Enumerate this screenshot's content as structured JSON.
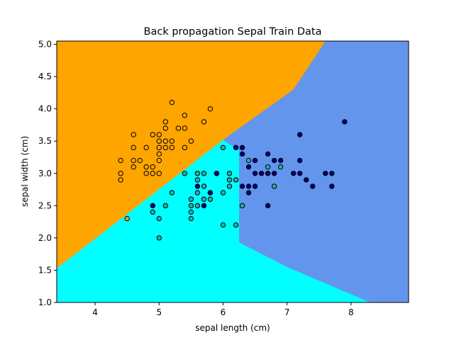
{
  "chart_data": {
    "type": "scatter",
    "title": "Back propagation Sepal Train Data",
    "xlabel": "sepal length (cm)",
    "ylabel": "sepal width (cm)",
    "xlim": [
      3.4,
      8.9
    ],
    "ylim": [
      1.0,
      5.05
    ],
    "xticks": [
      4,
      5,
      6,
      7,
      8
    ],
    "yticks": [
      1.0,
      1.5,
      2.0,
      2.5,
      3.0,
      3.5,
      4.0,
      4.5,
      5.0
    ],
    "grid": false,
    "region_colors": {
      "class0": "#ffa500",
      "class1": "#00ffff",
      "class2": "#6495ed"
    },
    "decision_regions": {
      "class0_boundary": [
        [
          3.4,
          1.53
        ],
        [
          6.0,
          3.52
        ],
        [
          7.1,
          4.3
        ],
        [
          7.6,
          5.05
        ]
      ],
      "class2_boundary": [
        [
          6.0,
          3.52
        ],
        [
          6.25,
          3.35
        ],
        [
          6.25,
          1.93
        ],
        [
          7.0,
          1.55
        ],
        [
          8.3,
          1.0
        ]
      ]
    },
    "series": [
      {
        "color": "#ffa500",
        "points": [
          [
            4.4,
            3.2
          ],
          [
            4.4,
            3.0
          ],
          [
            4.4,
            2.9
          ],
          [
            4.5,
            2.3
          ],
          [
            4.6,
            3.6
          ],
          [
            4.6,
            3.4
          ],
          [
            4.6,
            3.2
          ],
          [
            4.6,
            3.1
          ],
          [
            4.7,
            3.2
          ],
          [
            4.8,
            3.4
          ],
          [
            4.8,
            3.1
          ],
          [
            4.8,
            3.0
          ],
          [
            4.9,
            3.6
          ],
          [
            4.9,
            3.1
          ],
          [
            4.9,
            3.0
          ],
          [
            5.0,
            3.6
          ],
          [
            5.0,
            3.5
          ],
          [
            5.0,
            3.4
          ],
          [
            5.0,
            3.3
          ],
          [
            5.0,
            3.2
          ],
          [
            5.0,
            3.0
          ],
          [
            5.1,
            3.8
          ],
          [
            5.1,
            3.7
          ],
          [
            5.1,
            3.5
          ],
          [
            5.1,
            3.4
          ],
          [
            5.2,
            4.1
          ],
          [
            5.2,
            3.5
          ],
          [
            5.2,
            3.4
          ],
          [
            5.3,
            3.7
          ],
          [
            5.4,
            3.9
          ],
          [
            5.4,
            3.7
          ],
          [
            5.4,
            3.4
          ],
          [
            5.5,
            3.5
          ],
          [
            5.7,
            3.8
          ],
          [
            5.8,
            4.0
          ]
        ]
      },
      {
        "color": "#20b2aa",
        "points": [
          [
            4.9,
            2.4
          ],
          [
            5.0,
            2.3
          ],
          [
            5.0,
            2.0
          ],
          [
            5.1,
            2.5
          ],
          [
            5.2,
            2.7
          ],
          [
            5.4,
            3.0
          ],
          [
            5.5,
            2.6
          ],
          [
            5.5,
            2.5
          ],
          [
            5.5,
            2.4
          ],
          [
            5.5,
            2.3
          ],
          [
            5.6,
            3.0
          ],
          [
            5.6,
            2.9
          ],
          [
            5.6,
            2.7
          ],
          [
            5.6,
            2.5
          ],
          [
            5.7,
            3.0
          ],
          [
            5.7,
            2.8
          ],
          [
            5.7,
            2.6
          ],
          [
            5.8,
            2.7
          ],
          [
            5.8,
            2.6
          ],
          [
            6.0,
            3.4
          ],
          [
            6.0,
            2.7
          ],
          [
            6.0,
            2.2
          ],
          [
            6.1,
            3.0
          ],
          [
            6.1,
            2.9
          ],
          [
            6.1,
            2.8
          ],
          [
            6.2,
            2.9
          ],
          [
            6.3,
            2.5
          ],
          [
            6.4,
            3.2
          ],
          [
            6.6,
            3.0
          ],
          [
            6.7,
            3.1
          ],
          [
            6.7,
            3.0
          ],
          [
            6.8,
            2.8
          ],
          [
            6.9,
            3.1
          ],
          [
            6.2,
            2.2
          ],
          [
            5.9,
            3.0
          ]
        ]
      },
      {
        "color": "#000080",
        "points": [
          [
            4.9,
            2.5
          ],
          [
            5.6,
            2.8
          ],
          [
            5.7,
            2.5
          ],
          [
            5.8,
            2.7
          ],
          [
            5.9,
            3.0
          ],
          [
            6.2,
            3.4
          ],
          [
            6.3,
            3.4
          ],
          [
            6.3,
            3.3
          ],
          [
            6.3,
            2.8
          ],
          [
            6.4,
            3.1
          ],
          [
            6.4,
            2.8
          ],
          [
            6.4,
            2.7
          ],
          [
            6.5,
            3.2
          ],
          [
            6.5,
            3.0
          ],
          [
            6.5,
            2.8
          ],
          [
            6.7,
            3.3
          ],
          [
            6.7,
            3.0
          ],
          [
            6.7,
            2.5
          ],
          [
            6.8,
            3.2
          ],
          [
            6.8,
            3.0
          ],
          [
            6.9,
            3.2
          ],
          [
            7.1,
            3.0
          ],
          [
            7.2,
            3.6
          ],
          [
            7.2,
            3.2
          ],
          [
            7.2,
            3.0
          ],
          [
            7.3,
            2.9
          ],
          [
            7.4,
            2.8
          ],
          [
            7.6,
            3.0
          ],
          [
            7.7,
            3.0
          ],
          [
            7.7,
            2.8
          ],
          [
            7.9,
            3.8
          ],
          [
            6.6,
            3.0
          ]
        ]
      }
    ]
  }
}
